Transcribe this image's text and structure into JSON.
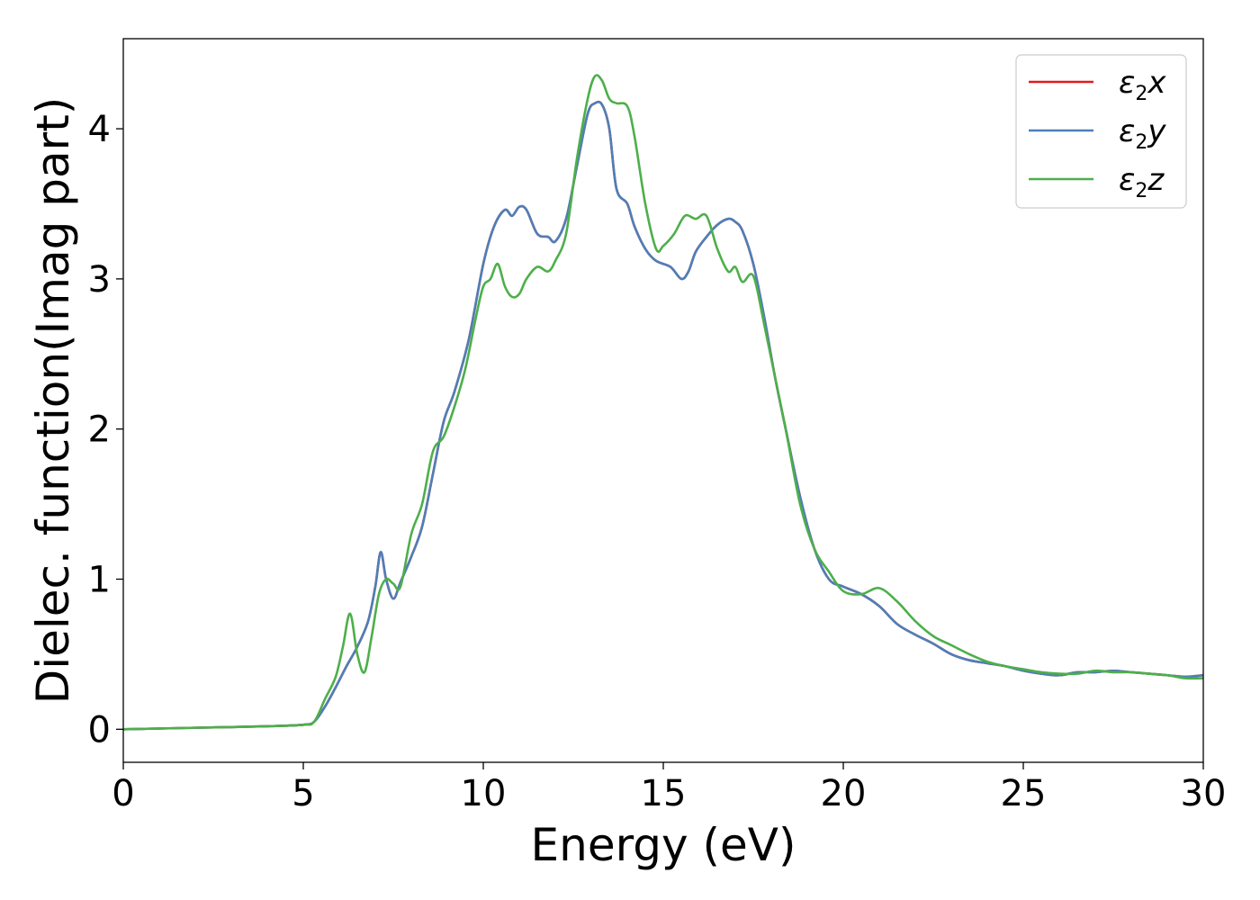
{
  "chart_data": {
    "type": "line",
    "title": "",
    "xlabel": "Energy (eV)",
    "ylabel": "Dielec. function(Imag part)",
    "xlim": [
      0,
      30
    ],
    "ylim": [
      -0.22,
      4.6
    ],
    "xticks": [
      0,
      5,
      10,
      15,
      20,
      25,
      30
    ],
    "xtick_labels": [
      "0",
      "5",
      "10",
      "15",
      "20",
      "25",
      "30"
    ],
    "yticks": [
      0,
      1,
      2,
      3,
      4
    ],
    "ytick_labels": [
      "0",
      "1",
      "2",
      "3",
      "4"
    ],
    "grid": false,
    "legend_position": "top-right",
    "series": [
      {
        "name": "ε2x",
        "base": "ε",
        "sub": "2",
        "var": "x",
        "color": "#e41a1c",
        "x": [
          0,
          2,
          4,
          5,
          5.3,
          5.6,
          5.9,
          6.2,
          6.5,
          6.8,
          7.0,
          7.15,
          7.3,
          7.5,
          7.7,
          8.0,
          8.3,
          8.6,
          8.9,
          9.2,
          9.6,
          10.0,
          10.3,
          10.6,
          10.8,
          11.0,
          11.2,
          11.5,
          11.8,
          12.0,
          12.3,
          12.6,
          12.9,
          13.1,
          13.3,
          13.5,
          13.7,
          14.0,
          14.2,
          14.5,
          14.8,
          15.2,
          15.5,
          15.7,
          15.9,
          16.2,
          16.5,
          16.8,
          17.0,
          17.2,
          17.5,
          17.8,
          18.1,
          18.4,
          18.8,
          19.2,
          19.6,
          20.0,
          20.5,
          21.0,
          21.5,
          22.0,
          22.5,
          23.0,
          23.5,
          24.0,
          24.5,
          25.0,
          25.5,
          26.0,
          26.5,
          27.0,
          27.5,
          28.0,
          28.5,
          29.0,
          29.5,
          30.0
        ],
        "y": [
          0,
          0.01,
          0.02,
          0.03,
          0.05,
          0.15,
          0.28,
          0.42,
          0.55,
          0.72,
          0.95,
          1.18,
          1.0,
          0.87,
          0.98,
          1.15,
          1.35,
          1.7,
          2.05,
          2.25,
          2.6,
          3.1,
          3.35,
          3.46,
          3.42,
          3.48,
          3.46,
          3.3,
          3.28,
          3.25,
          3.4,
          3.75,
          4.1,
          4.17,
          4.16,
          4.0,
          3.6,
          3.5,
          3.35,
          3.2,
          3.12,
          3.08,
          3.0,
          3.05,
          3.18,
          3.28,
          3.36,
          3.4,
          3.38,
          3.32,
          3.1,
          2.75,
          2.35,
          2.0,
          1.55,
          1.2,
          1.0,
          0.95,
          0.9,
          0.82,
          0.7,
          0.63,
          0.57,
          0.5,
          0.46,
          0.44,
          0.42,
          0.39,
          0.37,
          0.36,
          0.38,
          0.38,
          0.39,
          0.38,
          0.37,
          0.36,
          0.35,
          0.36
        ]
      },
      {
        "name": "ε2y",
        "base": "ε",
        "sub": "2",
        "var": "y",
        "color": "#4d7fb8",
        "x": [
          0,
          2,
          4,
          5,
          5.3,
          5.6,
          5.9,
          6.2,
          6.5,
          6.8,
          7.0,
          7.15,
          7.3,
          7.5,
          7.7,
          8.0,
          8.3,
          8.6,
          8.9,
          9.2,
          9.6,
          10.0,
          10.3,
          10.6,
          10.8,
          11.0,
          11.2,
          11.5,
          11.8,
          12.0,
          12.3,
          12.6,
          12.9,
          13.1,
          13.3,
          13.5,
          13.7,
          14.0,
          14.2,
          14.5,
          14.8,
          15.2,
          15.5,
          15.7,
          15.9,
          16.2,
          16.5,
          16.8,
          17.0,
          17.2,
          17.5,
          17.8,
          18.1,
          18.4,
          18.8,
          19.2,
          19.6,
          20.0,
          20.5,
          21.0,
          21.5,
          22.0,
          22.5,
          23.0,
          23.5,
          24.0,
          24.5,
          25.0,
          25.5,
          26.0,
          26.5,
          27.0,
          27.5,
          28.0,
          28.5,
          29.0,
          29.5,
          30.0
        ],
        "y": [
          0,
          0.01,
          0.02,
          0.03,
          0.05,
          0.15,
          0.28,
          0.42,
          0.55,
          0.72,
          0.95,
          1.18,
          1.0,
          0.87,
          0.98,
          1.15,
          1.35,
          1.7,
          2.05,
          2.25,
          2.6,
          3.1,
          3.35,
          3.46,
          3.42,
          3.48,
          3.46,
          3.3,
          3.28,
          3.25,
          3.4,
          3.75,
          4.1,
          4.17,
          4.16,
          4.0,
          3.6,
          3.5,
          3.35,
          3.2,
          3.12,
          3.08,
          3.0,
          3.05,
          3.18,
          3.28,
          3.36,
          3.4,
          3.38,
          3.32,
          3.1,
          2.75,
          2.35,
          2.0,
          1.55,
          1.2,
          1.0,
          0.95,
          0.9,
          0.82,
          0.7,
          0.63,
          0.57,
          0.5,
          0.46,
          0.44,
          0.42,
          0.39,
          0.37,
          0.36,
          0.38,
          0.38,
          0.39,
          0.38,
          0.37,
          0.36,
          0.35,
          0.36
        ]
      },
      {
        "name": "ε2z",
        "base": "ε",
        "sub": "2",
        "var": "z",
        "color": "#4daf4a",
        "x": [
          0,
          2,
          4,
          5,
          5.3,
          5.6,
          5.9,
          6.1,
          6.3,
          6.5,
          6.7,
          6.9,
          7.1,
          7.3,
          7.5,
          7.7,
          8.0,
          8.3,
          8.6,
          8.9,
          9.2,
          9.5,
          9.8,
          10.0,
          10.2,
          10.4,
          10.6,
          10.8,
          11.0,
          11.2,
          11.5,
          11.8,
          12.0,
          12.3,
          12.6,
          12.9,
          13.1,
          13.3,
          13.5,
          13.7,
          14.0,
          14.2,
          14.5,
          14.8,
          15.0,
          15.3,
          15.6,
          15.9,
          16.2,
          16.5,
          16.8,
          17.0,
          17.2,
          17.5,
          17.8,
          18.1,
          18.4,
          18.8,
          19.2,
          19.6,
          20.0,
          20.5,
          21.0,
          21.5,
          22.0,
          22.5,
          23.0,
          23.5,
          24.0,
          24.5,
          25.0,
          25.5,
          26.0,
          26.5,
          27.0,
          27.5,
          28.0,
          28.5,
          29.0,
          29.5,
          30.0
        ],
        "y": [
          0,
          0.01,
          0.02,
          0.03,
          0.05,
          0.2,
          0.35,
          0.55,
          0.77,
          0.5,
          0.38,
          0.62,
          0.9,
          1.0,
          0.97,
          0.95,
          1.3,
          1.5,
          1.85,
          1.95,
          2.15,
          2.4,
          2.75,
          2.95,
          3.0,
          3.1,
          2.95,
          2.88,
          2.9,
          3.0,
          3.08,
          3.05,
          3.12,
          3.3,
          3.8,
          4.2,
          4.35,
          4.32,
          4.2,
          4.17,
          4.15,
          3.95,
          3.5,
          3.2,
          3.22,
          3.3,
          3.42,
          3.4,
          3.42,
          3.2,
          3.05,
          3.08,
          2.98,
          3.02,
          2.7,
          2.35,
          2.0,
          1.5,
          1.2,
          1.05,
          0.92,
          0.9,
          0.94,
          0.85,
          0.72,
          0.62,
          0.56,
          0.5,
          0.45,
          0.42,
          0.4,
          0.38,
          0.37,
          0.37,
          0.39,
          0.38,
          0.38,
          0.37,
          0.36,
          0.34,
          0.34
        ]
      }
    ]
  }
}
